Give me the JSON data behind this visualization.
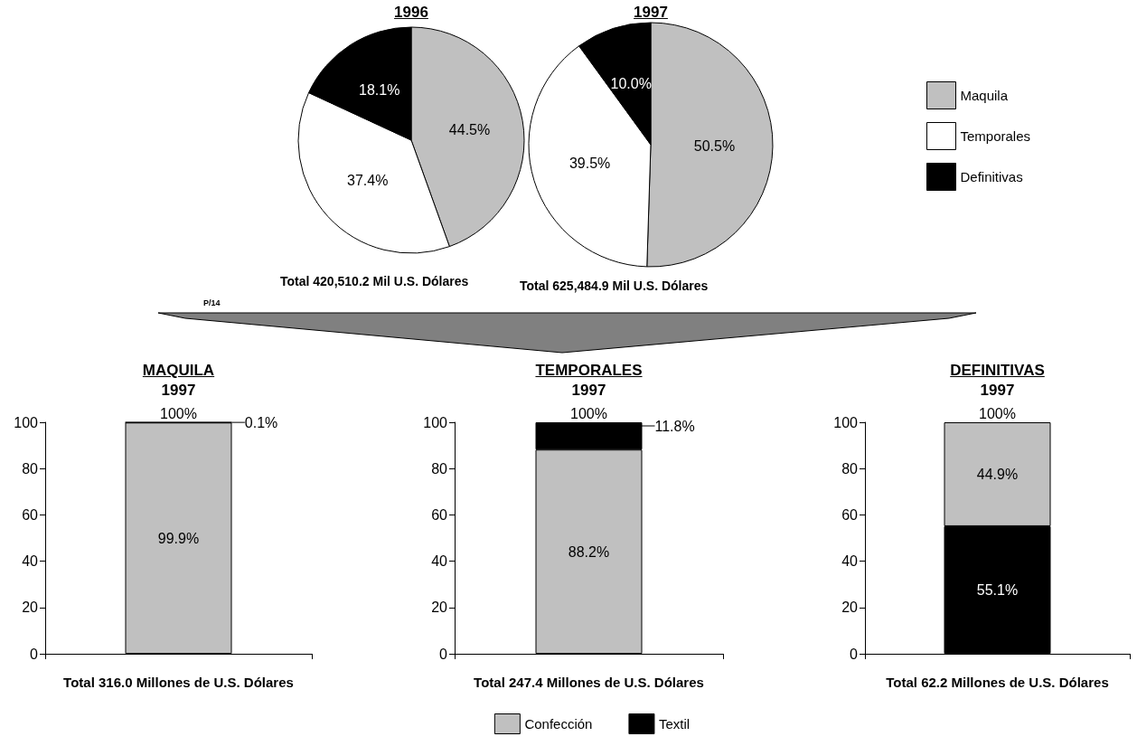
{
  "chart_data": [
    {
      "type": "pie",
      "title": "1996",
      "categories": [
        null,
        null,
        null
      ],
      "values": [
        44.5,
        37.4,
        18.1
      ],
      "colors": [
        "#c0c0c0",
        "#ffffff",
        "#000000"
      ],
      "value_labels": [
        "44.5%",
        "37.4%",
        "18.1%"
      ],
      "annotations": [
        "Total 420,510.2 Mil U.S. Dólares",
        "P/14"
      ]
    },
    {
      "type": "pie",
      "title": "1997",
      "categories": [
        "Maquila",
        "Temporales",
        "Definitivas"
      ],
      "values": [
        50.5,
        39.5,
        10.0
      ],
      "colors": [
        "#c0c0c0",
        "#ffffff",
        "#000000"
      ],
      "value_labels": [
        "50.5%",
        "39.5%",
        "10.0%"
      ],
      "annotations": [
        "Total 625,484.9 Mil U.S. Dólares"
      ],
      "legend": "right"
    },
    {
      "type": "bar",
      "stacked": true,
      "title": "MAQUILA",
      "subtitle": "1997",
      "categories": [
        null
      ],
      "xlabel": "Total 316.0 Millones de U.S. Dólares",
      "ylim": [
        0,
        100
      ],
      "yticks": [
        0,
        20,
        40,
        60,
        80,
        100
      ],
      "totals": [
        "100%"
      ],
      "series": [
        {
          "color": "#c0c0c0",
          "values": [
            99.9
          ],
          "value_labels": [
            "99.9%"
          ]
        },
        {
          "color": "#000000",
          "values": [
            0.1
          ],
          "value_labels": [
            "0.1%"
          ]
        }
      ]
    },
    {
      "type": "bar",
      "stacked": true,
      "title": "TEMPORALES",
      "subtitle": "1997",
      "categories": [
        null
      ],
      "xlabel": "Total 247.4 Millones de U.S. Dólares",
      "ylim": [
        0,
        100
      ],
      "yticks": [
        0,
        20,
        40,
        60,
        80,
        100
      ],
      "totals": [
        "100%"
      ],
      "legend": "bottom",
      "series": [
        {
          "name": "Confección",
          "color": "#c0c0c0",
          "values": [
            88.2
          ],
          "value_labels": [
            "88.2%"
          ]
        },
        {
          "name": "Textil",
          "color": "#000000",
          "values": [
            11.8
          ],
          "value_labels": [
            "11.8%"
          ]
        }
      ]
    },
    {
      "type": "bar",
      "stacked": true,
      "title": "DEFINITIVAS",
      "subtitle": "1997",
      "categories": [
        null
      ],
      "xlabel": "Total 62.2 Millones de U.S. Dólares",
      "ylim": [
        0,
        100
      ],
      "yticks": [
        0,
        20,
        40,
        60,
        80,
        100
      ],
      "totals": [
        "100%"
      ],
      "series": [
        {
          "color": "#000000",
          "values": [
            55.1
          ],
          "value_labels": [
            "55.1%"
          ]
        },
        {
          "color": "#c0c0c0",
          "values": [
            44.9
          ],
          "value_labels": [
            "44.9%"
          ]
        }
      ]
    }
  ]
}
